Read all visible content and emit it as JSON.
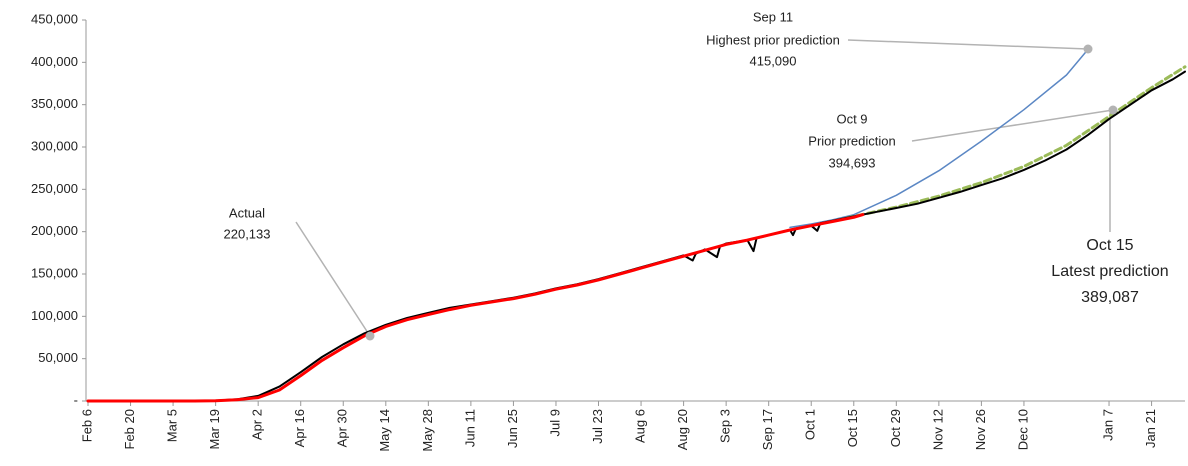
{
  "chart_data": {
    "type": "line",
    "xlim": [
      0,
      361
    ],
    "xticks": [
      {
        "value": 0,
        "label": "Feb 6"
      },
      {
        "value": 14,
        "label": "Feb 20"
      },
      {
        "value": 28,
        "label": "Mar 5"
      },
      {
        "value": 42,
        "label": "Mar 19"
      },
      {
        "value": 56,
        "label": "Apr 2"
      },
      {
        "value": 70,
        "label": "Apr 16"
      },
      {
        "value": 84,
        "label": "Apr 30"
      },
      {
        "value": 98,
        "label": "May 14"
      },
      {
        "value": 112,
        "label": "May 28"
      },
      {
        "value": 126,
        "label": "Jun 11"
      },
      {
        "value": 140,
        "label": "Jun 25"
      },
      {
        "value": 154,
        "label": "Jul 9"
      },
      {
        "value": 168,
        "label": "Jul 23"
      },
      {
        "value": 182,
        "label": "Aug 6"
      },
      {
        "value": 196,
        "label": "Aug 20"
      },
      {
        "value": 210,
        "label": "Sep 3"
      },
      {
        "value": 224,
        "label": "Sep 17"
      },
      {
        "value": 238,
        "label": "Oct 1"
      },
      {
        "value": 252,
        "label": "Oct 15"
      },
      {
        "value": 266,
        "label": "Oct 29"
      },
      {
        "value": 280,
        "label": "Nov 12"
      },
      {
        "value": 294,
        "label": "Nov 26"
      },
      {
        "value": 308,
        "label": "Dec 10"
      },
      {
        "value": 336,
        "label": "Jan 7"
      },
      {
        "value": 350,
        "label": "Jan 21"
      }
    ],
    "ylim": [
      0,
      450000
    ],
    "yticks": [
      {
        "value": 0,
        "label": "-"
      },
      {
        "value": 50000,
        "label": "50,000"
      },
      {
        "value": 100000,
        "label": "100,000"
      },
      {
        "value": 150000,
        "label": "150,000"
      },
      {
        "value": 200000,
        "label": "200,000"
      },
      {
        "value": 250000,
        "label": "250,000"
      },
      {
        "value": 300000,
        "label": "300,000"
      },
      {
        "value": 350000,
        "label": "350,000"
      },
      {
        "value": 400000,
        "label": "400,000"
      },
      {
        "value": 450000,
        "label": "450,000"
      }
    ],
    "series": [
      {
        "color": "#5b87c4",
        "width": 1.5,
        "dash": false,
        "x": [
          231,
          238,
          245,
          252,
          266,
          280,
          294,
          308,
          322,
          329
        ],
        "values": [
          205000,
          209000,
          214000,
          220000,
          243000,
          272000,
          307000,
          344000,
          385000,
          415090
        ]
      },
      {
        "color": "#9bbb59",
        "width": 3,
        "dash": true,
        "x": [
          246,
          252,
          266,
          280,
          294,
          308,
          322,
          336,
          350,
          361
        ],
        "values": [
          213000,
          218000,
          229000,
          242000,
          258000,
          277000,
          302000,
          336000,
          370000,
          394693
        ]
      },
      {
        "color": "#000000",
        "width": 2,
        "dash": false,
        "x": [
          0,
          7,
          14,
          21,
          28,
          35,
          42,
          49,
          56,
          63,
          70,
          77,
          84,
          91,
          98,
          105,
          112,
          119,
          126,
          133,
          140,
          147,
          154,
          161,
          168,
          175,
          182,
          189,
          196,
          199,
          200,
          203,
          207,
          208,
          210,
          217,
          219,
          220,
          224,
          231,
          232,
          233,
          238,
          240,
          241,
          245,
          252,
          259,
          266,
          273,
          280,
          287,
          294,
          301,
          308,
          315,
          322,
          329,
          336,
          343,
          350,
          357,
          361
        ],
        "values": [
          0,
          0,
          0,
          0,
          0,
          0,
          500,
          2000,
          6000,
          17000,
          34000,
          52000,
          67000,
          80000,
          90000,
          98000,
          104000,
          110000,
          114000,
          118000,
          122000,
          127000,
          133000,
          138000,
          144000,
          151000,
          158000,
          165000,
          172000,
          166000,
          174000,
          179000,
          170000,
          183000,
          186000,
          190000,
          177000,
          192000,
          196000,
          202000,
          196000,
          204000,
          207000,
          201000,
          210000,
          213000,
          218000,
          223000,
          228000,
          233000,
          240000,
          247000,
          255000,
          263000,
          273000,
          284000,
          297000,
          314000,
          333000,
          350000,
          367000,
          380000,
          389087
        ]
      },
      {
        "color": "#ff0000",
        "width": 3,
        "dash": false,
        "x": [
          0,
          7,
          14,
          21,
          28,
          35,
          42,
          49,
          56,
          63,
          70,
          77,
          84,
          91,
          98,
          105,
          112,
          119,
          126,
          133,
          140,
          147,
          154,
          161,
          168,
          175,
          182,
          189,
          196,
          203,
          210,
          217,
          224,
          231,
          238,
          245,
          252,
          255
        ],
        "values": [
          0,
          0,
          0,
          0,
          0,
          0,
          300,
          1500,
          4000,
          13000,
          30000,
          48000,
          63000,
          77000,
          88000,
          96000,
          102000,
          108000,
          113000,
          117000,
          121000,
          126000,
          132000,
          137000,
          143000,
          150000,
          157000,
          164000,
          171000,
          178000,
          185000,
          190000,
          196000,
          202000,
          207000,
          212000,
          217000,
          220133
        ]
      }
    ],
    "annotations": [
      {
        "lines": [
          "Sep 11",
          "Highest prior prediction",
          "415,090"
        ],
        "color": "#5b87c4"
      },
      {
        "lines": [
          "Oct 9",
          "Prior prediction",
          "394,693"
        ],
        "color": "#9bbb59"
      },
      {
        "lines": [
          "Oct 15",
          "Latest prediction",
          "389,087"
        ],
        "color": "#000000"
      },
      {
        "lines": [
          "Actual",
          "220,133"
        ],
        "color": "#ff0000"
      }
    ]
  }
}
